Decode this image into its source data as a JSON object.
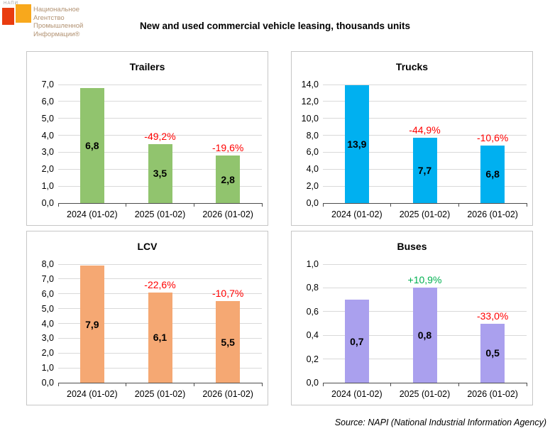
{
  "page": {
    "title": "New and used commercial vehicle leasing, thousands units",
    "source": "Source: NAPI (National Industrial Information Agency)"
  },
  "logo": {
    "brand_small": "НАПИ",
    "lines": [
      "Национальное",
      "Агентство",
      "Промышленной",
      "Информации®"
    ],
    "colors": {
      "red_square": "#E93C0F",
      "orange_square": "#F8A81C",
      "text": "#B29272"
    }
  },
  "colors": {
    "negative_label": "#FF0000",
    "positive_label": "#00B050",
    "gridline": "#D9D9D9",
    "axis": "#4D4D4D",
    "panel_border": "#C6C6C6"
  },
  "chart_data": [
    {
      "type": "bar",
      "title": "Trailers",
      "categories": [
        "2024 (01-02)",
        "2025 (01-02)",
        "2026 (01-02)"
      ],
      "values": [
        6.8,
        3.5,
        2.8
      ],
      "value_labels": [
        "6,8",
        "3,5",
        "2,8"
      ],
      "change_labels": [
        null,
        "-49,2%",
        "-19,6%"
      ],
      "change_colors": [
        null,
        "#FF0000",
        "#FF0000"
      ],
      "bar_color": "#91C46E",
      "ylim": [
        0,
        7
      ],
      "ytick_step": 1.0,
      "ytick_labels": [
        "0,0",
        "1,0",
        "2,0",
        "3,0",
        "4,0",
        "5,0",
        "6,0",
        "7,0"
      ],
      "grid": true,
      "legend": "none"
    },
    {
      "type": "bar",
      "title": "Trucks",
      "categories": [
        "2024 (01-02)",
        "2025 (01-02)",
        "2026 (01-02)"
      ],
      "values": [
        13.9,
        7.7,
        6.8
      ],
      "value_labels": [
        "13,9",
        "7,7",
        "6,8"
      ],
      "change_labels": [
        null,
        "-44,9%",
        "-10,6%"
      ],
      "change_colors": [
        null,
        "#FF0000",
        "#FF0000"
      ],
      "bar_color": "#00B0F0",
      "ylim": [
        0,
        14
      ],
      "ytick_step": 2.0,
      "ytick_labels": [
        "0,0",
        "2,0",
        "4,0",
        "6,0",
        "8,0",
        "10,0",
        "12,0",
        "14,0"
      ],
      "grid": true,
      "legend": "none"
    },
    {
      "type": "bar",
      "title": "LCV",
      "categories": [
        "2024 (01-02)",
        "2025 (01-02)",
        "2026 (01-02)"
      ],
      "values": [
        7.9,
        6.1,
        5.5
      ],
      "value_labels": [
        "7,9",
        "6,1",
        "5,5"
      ],
      "change_labels": [
        null,
        "-22,6%",
        "-10,7%"
      ],
      "change_colors": [
        null,
        "#FF0000",
        "#FF0000"
      ],
      "bar_color": "#F5A873",
      "ylim": [
        0,
        8
      ],
      "ytick_step": 1.0,
      "ytick_labels": [
        "0,0",
        "1,0",
        "2,0",
        "3,0",
        "4,0",
        "5,0",
        "6,0",
        "7,0",
        "8,0"
      ],
      "grid": true,
      "legend": "none"
    },
    {
      "type": "bar",
      "title": "Buses",
      "categories": [
        "2024 (01-02)",
        "2025 (01-02)",
        "2026 (01-02)"
      ],
      "values": [
        0.7,
        0.8,
        0.5
      ],
      "value_labels": [
        "0,7",
        "0,8",
        "0,5"
      ],
      "change_labels": [
        null,
        "+10,9%",
        "-33,0%"
      ],
      "change_colors": [
        null,
        "#00B050",
        "#FF0000"
      ],
      "bar_color": "#AAA0EE",
      "ylim": [
        0,
        1
      ],
      "ytick_step": 0.2,
      "ytick_labels": [
        "0,0",
        "0,2",
        "0,4",
        "0,6",
        "0,8",
        "1,0"
      ],
      "grid": true,
      "legend": "none"
    }
  ]
}
